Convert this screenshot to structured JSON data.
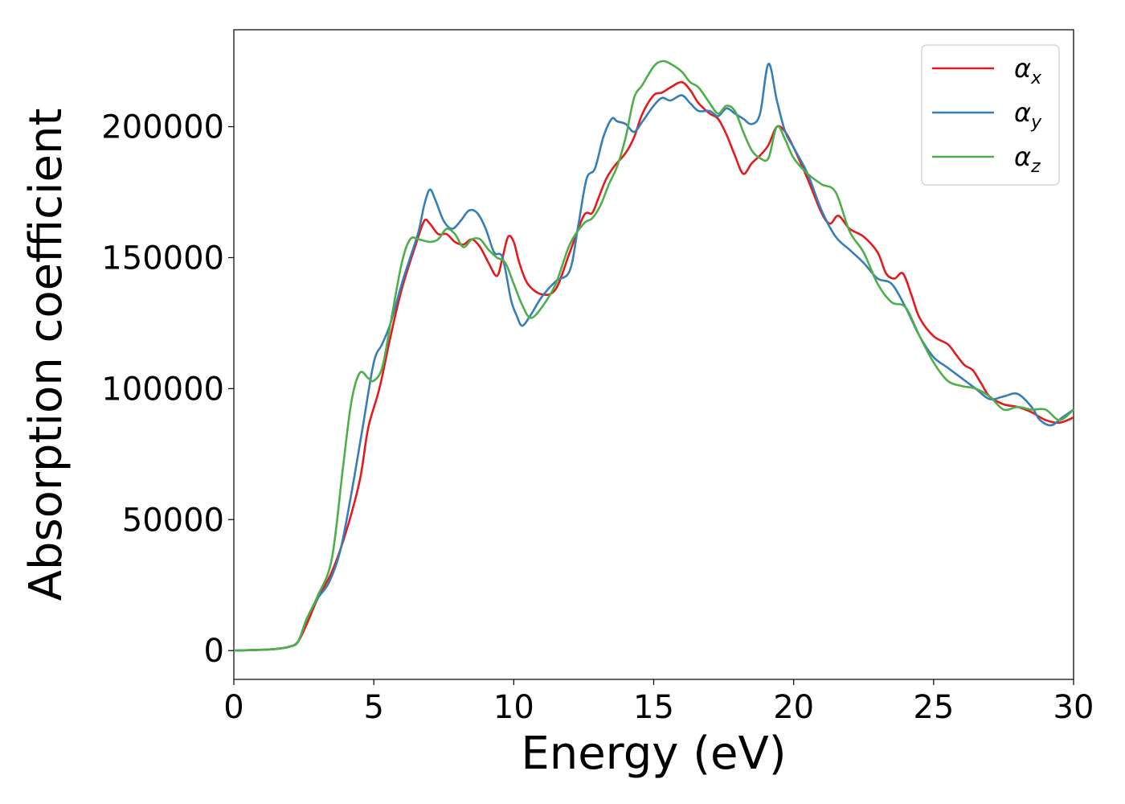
{
  "chart_data": {
    "type": "line",
    "title": "",
    "xlabel": "Energy (eV)",
    "ylabel": "Absorption coefficient",
    "xlim": [
      0,
      30
    ],
    "ylim": [
      -11000,
      237000
    ],
    "xticks": [
      0,
      5,
      10,
      15,
      20,
      25,
      30
    ],
    "xtick_labels": [
      "0",
      "5",
      "10",
      "15",
      "20",
      "25",
      "30"
    ],
    "yticks": [
      0,
      50000,
      100000,
      150000,
      200000
    ],
    "ytick_labels": [
      "0",
      "50000",
      "100000",
      "150000",
      "200000"
    ],
    "grid": false,
    "legend_position": "top-right",
    "series": [
      {
        "name": "α_x",
        "legend_base": "α",
        "legend_sub": "x",
        "color": "#e41a1c",
        "x": [
          0,
          1,
          1.5,
          2,
          2.3,
          2.6,
          3,
          3.5,
          4,
          4.5,
          4.8,
          5.2,
          5.6,
          6,
          6.5,
          6.8,
          7,
          7.3,
          7.6,
          7.9,
          8.2,
          8.5,
          8.8,
          9.1,
          9.4,
          9.6,
          9.8,
          10,
          10.2,
          10.5,
          11,
          11.5,
          12,
          12.5,
          12.8,
          13,
          13.3,
          13.6,
          14,
          14.3,
          14.6,
          15,
          15.3,
          15.6,
          16,
          16.3,
          16.6,
          17,
          17.3,
          17.6,
          17.9,
          18.2,
          18.5,
          18.8,
          19.1,
          19.4,
          19.7,
          20,
          20.5,
          21,
          21.3,
          21.6,
          22,
          22.5,
          23,
          23.3,
          23.6,
          23.9,
          24.2,
          24.5,
          25,
          25.5,
          25.8,
          26.1,
          26.4,
          26.7,
          27,
          27.5,
          28,
          28.5,
          29,
          29.5,
          30
        ],
        "y": [
          0,
          300,
          600,
          1500,
          3500,
          10000,
          20000,
          30000,
          45000,
          65000,
          85000,
          100000,
          120000,
          138000,
          155000,
          164000,
          163000,
          159000,
          159000,
          156000,
          155000,
          157000,
          154000,
          148000,
          143000,
          150000,
          158000,
          156000,
          148000,
          140000,
          136000,
          138000,
          152000,
          166000,
          167000,
          172000,
          180000,
          185000,
          190000,
          196000,
          205000,
          212000,
          213000,
          215000,
          217000,
          214000,
          209000,
          205000,
          203000,
          197000,
          189000,
          182000,
          186000,
          189000,
          193000,
          200000,
          198000,
          192000,
          180000,
          167000,
          163000,
          166000,
          161000,
          158000,
          152000,
          144000,
          142000,
          144000,
          136000,
          127000,
          120000,
          117000,
          113000,
          109000,
          107000,
          102000,
          97000,
          94000,
          93000,
          91000,
          88000,
          87000,
          89000
        ]
      },
      {
        "name": "α_y",
        "legend_base": "α",
        "legend_sub": "y",
        "color": "#377eb8",
        "x": [
          0,
          1,
          1.5,
          2,
          2.3,
          2.6,
          3,
          3.4,
          3.8,
          4.2,
          4.6,
          5,
          5.3,
          5.6,
          6,
          6.3,
          6.6,
          6.8,
          7,
          7.2,
          7.5,
          7.8,
          8.1,
          8.4,
          8.7,
          9,
          9.3,
          9.6,
          9.9,
          10.1,
          10.3,
          10.6,
          11,
          11.5,
          12,
          12.3,
          12.6,
          12.9,
          13.2,
          13.5,
          13.7,
          14,
          14.3,
          14.6,
          15,
          15.3,
          15.6,
          16,
          16.3,
          16.6,
          17,
          17.3,
          17.6,
          17.9,
          18.2,
          18.5,
          18.8,
          19.1,
          19.4,
          19.7,
          20,
          20.5,
          21,
          21.5,
          22,
          22.5,
          23,
          23.5,
          24,
          24.5,
          25,
          25.5,
          26,
          26.5,
          27,
          27.5,
          28,
          28.5,
          28.8,
          29.2,
          29.6,
          30
        ],
        "y": [
          0,
          300,
          600,
          1500,
          3500,
          12000,
          20000,
          26000,
          38000,
          60000,
          85000,
          110000,
          117000,
          125000,
          140000,
          150000,
          160000,
          170000,
          176000,
          172000,
          164000,
          161000,
          164000,
          168000,
          167000,
          161000,
          152000,
          150000,
          134000,
          128000,
          124000,
          128000,
          135000,
          141000,
          145000,
          162000,
          180000,
          184000,
          196000,
          203000,
          202000,
          201000,
          198000,
          202000,
          208000,
          211000,
          210000,
          212000,
          209000,
          206000,
          206000,
          204000,
          207000,
          205000,
          203000,
          201000,
          205000,
          224000,
          210000,
          198000,
          192000,
          182000,
          168000,
          158000,
          153000,
          148000,
          142000,
          140000,
          131000,
          120000,
          112000,
          108000,
          104000,
          100000,
          96000,
          97000,
          98000,
          93000,
          88000,
          86000,
          89000,
          92000
        ]
      },
      {
        "name": "α_z",
        "legend_base": "α",
        "legend_sub": "z",
        "color": "#4daf4a",
        "x": [
          0,
          1,
          1.5,
          2,
          2.3,
          2.6,
          3,
          3.5,
          3.9,
          4.2,
          4.5,
          4.8,
          5,
          5.3,
          5.6,
          6,
          6.3,
          6.6,
          7,
          7.3,
          7.6,
          7.9,
          8.2,
          8.5,
          8.8,
          9.1,
          9.4,
          9.7,
          10,
          10.3,
          10.6,
          11,
          11.5,
          12,
          12.5,
          12.8,
          13.1,
          13.4,
          13.7,
          14,
          14.3,
          14.6,
          15,
          15.3,
          15.6,
          16,
          16.3,
          16.6,
          17,
          17.3,
          17.6,
          17.9,
          18.2,
          18.5,
          18.8,
          19.1,
          19.4,
          19.7,
          20,
          20.5,
          21,
          21.5,
          22,
          22.5,
          23,
          23.5,
          24,
          24.5,
          25,
          25.5,
          26,
          26.5,
          27,
          27.5,
          28,
          28.5,
          29,
          29.5,
          30
        ],
        "y": [
          0,
          300,
          600,
          1500,
          3500,
          12000,
          21000,
          35000,
          70000,
          95000,
          106000,
          104000,
          103000,
          108000,
          125000,
          148000,
          157000,
          157000,
          156000,
          157000,
          161000,
          159000,
          154000,
          157000,
          157000,
          153000,
          150000,
          148000,
          140000,
          132000,
          127000,
          131000,
          140000,
          155000,
          163000,
          165000,
          170000,
          178000,
          185000,
          196000,
          211000,
          216000,
          223000,
          225000,
          224000,
          221000,
          217000,
          215000,
          209000,
          205000,
          208000,
          206000,
          198000,
          191000,
          188000,
          188000,
          200000,
          195000,
          188000,
          182000,
          178000,
          175000,
          160000,
          152000,
          140000,
          133000,
          131000,
          120000,
          110000,
          103000,
          101000,
          100000,
          97000,
          92000,
          93000,
          92000,
          92000,
          88000,
          92000
        ]
      }
    ]
  }
}
